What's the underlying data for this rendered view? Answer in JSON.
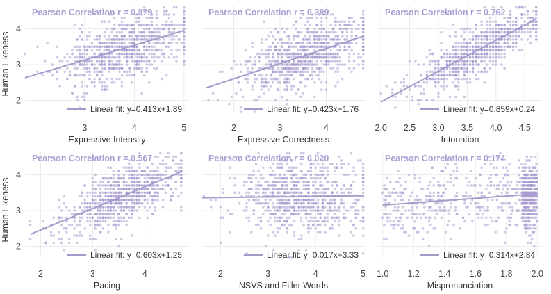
{
  "colors": {
    "point": "#a89bd0",
    "line": "#a69acb",
    "label": "#a99fd3"
  },
  "y_axis_label": "Human Likeness",
  "chart_data": [
    {
      "type": "scatter",
      "xlabel": "Expressive Intensity",
      "ylabel": "Human Likeness",
      "correlation_label": "Pearson Correlation r = 0.379",
      "fit_label": "Linear fit: y=0.413x+1.89",
      "fit": {
        "slope": 0.413,
        "intercept": 1.89
      },
      "xlim": [
        1.8,
        5.1
      ],
      "ylim": [
        1.7,
        4.65
      ],
      "xticks": [
        "3",
        "4",
        "5"
      ],
      "yticks": [
        "2",
        "3",
        "4"
      ],
      "x_range": [
        1.8,
        5.0
      ],
      "y_range": [
        1.7,
        4.6
      ],
      "seed": 11,
      "n_points": 850
    },
    {
      "type": "scatter",
      "xlabel": "Expressive Correctness",
      "ylabel": "Human Likeness",
      "correlation_label": "Pearson Correlation r = 0.389",
      "fit_label": "Linear fit: y=0.423x+1.76",
      "fit": {
        "slope": 0.423,
        "intercept": 1.76
      },
      "xlim": [
        1.3,
        4.85
      ],
      "ylim": [
        1.7,
        4.65
      ],
      "xticks": [
        "2",
        "3",
        "4"
      ],
      "yticks": [
        "2",
        "3",
        "4"
      ],
      "x_range": [
        1.4,
        4.8
      ],
      "y_range": [
        1.7,
        4.6
      ],
      "seed": 23,
      "n_points": 850
    },
    {
      "type": "scatter",
      "xlabel": "Intonation",
      "ylabel": "Human Likeness",
      "correlation_label": "Pearson Correlation r = 0.762",
      "fit_label": "Linear fit: y=0.859x+0.24",
      "fit": {
        "slope": 0.859,
        "intercept": 0.24
      },
      "xlim": [
        1.95,
        4.8
      ],
      "ylim": [
        1.7,
        4.65
      ],
      "xticks": [
        "2.0",
        "2.5",
        "3.0",
        "3.5",
        "4.0",
        "4.5"
      ],
      "yticks": [
        "2",
        "3",
        "4"
      ],
      "x_range": [
        2.0,
        4.7
      ],
      "y_range": [
        1.7,
        4.6
      ],
      "seed": 37,
      "n_points": 850
    },
    {
      "type": "scatter",
      "xlabel": "Pacing",
      "ylabel": "Human Likeness",
      "correlation_label": "Pearson Correlation r = 0.567",
      "fit_label": "Linear fit: y=0.603x+1.25",
      "fit": {
        "slope": 0.603,
        "intercept": 1.25
      },
      "xlim": [
        1.7,
        4.85
      ],
      "ylim": [
        1.7,
        4.65
      ],
      "xticks": [
        "2",
        "3",
        "4"
      ],
      "yticks": [
        "2",
        "3",
        "4"
      ],
      "x_range": [
        1.8,
        4.7
      ],
      "y_range": [
        1.7,
        4.6
      ],
      "seed": 53,
      "n_points": 850
    },
    {
      "type": "scatter",
      "xlabel": "NSVS and Filler Words",
      "ylabel": "Human Likeness",
      "correlation_label": "Pearson Correlation r = 0.020",
      "fit_label": "Linear fit: y=0.017x+3.33",
      "fit": {
        "slope": 0.017,
        "intercept": 3.33
      },
      "xlim": [
        1.6,
        5.05
      ],
      "ylim": [
        1.7,
        4.65
      ],
      "xticks": [
        "2",
        "3",
        "4",
        "5"
      ],
      "yticks": [
        "2",
        "3",
        "4"
      ],
      "x_range": [
        1.6,
        5.0
      ],
      "y_range": [
        1.7,
        4.6
      ],
      "seed": 71,
      "n_points": 850
    },
    {
      "type": "scatter",
      "xlabel": "Mispronunciation",
      "ylabel": "Human Likeness",
      "correlation_label": "Pearson Correlation r = 0.174",
      "fit_label": "Linear fit: y=0.314x+2.84",
      "fit": {
        "slope": 0.314,
        "intercept": 2.84
      },
      "xlim": [
        0.97,
        2.03
      ],
      "ylim": [
        1.7,
        4.65
      ],
      "xticks": [
        "1.0",
        "1.2",
        "1.4",
        "1.6",
        "1.8",
        "2.0"
      ],
      "yticks": [
        "2",
        "3",
        "4"
      ],
      "x_range": [
        1.0,
        2.0
      ],
      "y_range": [
        1.7,
        4.6
      ],
      "seed": 89,
      "n_points": 850
    }
  ]
}
